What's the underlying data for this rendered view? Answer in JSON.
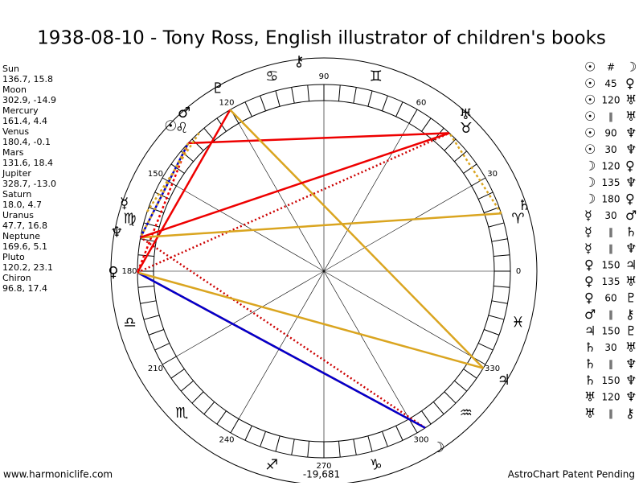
{
  "title": "1938-08-10 - Tony Ross, English illustrator of children's books",
  "planets": [
    {
      "name": "Sun",
      "glyph": "☉",
      "position": "136.7, 15.8"
    },
    {
      "name": "Moon",
      "glyph": "☽",
      "position": "302.9, -14.9"
    },
    {
      "name": "Mercury",
      "glyph": "☿",
      "position": "161.4, 4.4"
    },
    {
      "name": "Venus",
      "glyph": "♀",
      "position": "180.4, -0.1"
    },
    {
      "name": "Mars",
      "glyph": "♂",
      "position": "131.6, 18.4"
    },
    {
      "name": "Jupiter",
      "glyph": "♃",
      "position": "328.7, -13.0"
    },
    {
      "name": "Saturn",
      "glyph": "♄",
      "position": "18.0, 4.7"
    },
    {
      "name": "Uranus",
      "glyph": "♅",
      "position": "47.7, 16.8"
    },
    {
      "name": "Neptune",
      "glyph": "♆",
      "position": "169.6, 5.1"
    },
    {
      "name": "Pluto",
      "glyph": "♇",
      "position": "120.2, 23.1"
    },
    {
      "name": "Chiron",
      "glyph": "⚷",
      "position": "96.8, 17.4"
    }
  ],
  "degree_labels": [
    0,
    30,
    60,
    90,
    120,
    150,
    180,
    210,
    240,
    270,
    300,
    330
  ],
  "signs": [
    "♈",
    "♉",
    "♊",
    "♋",
    "♌",
    "♍",
    "♎",
    "♏",
    "♐",
    "♑",
    "♒",
    "♓"
  ],
  "aspects": [
    {
      "from": "☉",
      "aspect": "#",
      "to": "☽"
    },
    {
      "from": "☉",
      "aspect": "45",
      "to": "♀"
    },
    {
      "from": "☉",
      "aspect": "120",
      "to": "♅"
    },
    {
      "from": "☉",
      "aspect": "∥",
      "to": "♅"
    },
    {
      "from": "☉",
      "aspect": "90",
      "to": "♆"
    },
    {
      "from": "☉",
      "aspect": "30",
      "to": "♆"
    },
    {
      "from": "☽",
      "aspect": "120",
      "to": "♀"
    },
    {
      "from": "☽",
      "aspect": "135",
      "to": "♆"
    },
    {
      "from": "☽",
      "aspect": "180",
      "to": "♀"
    },
    {
      "from": "☿",
      "aspect": "30",
      "to": "♂"
    },
    {
      "from": "☿",
      "aspect": "∥",
      "to": "♄"
    },
    {
      "from": "☿",
      "aspect": "∥",
      "to": "♆"
    },
    {
      "from": "♀",
      "aspect": "150",
      "to": "♃"
    },
    {
      "from": "♀",
      "aspect": "135",
      "to": "♅"
    },
    {
      "from": "♀",
      "aspect": "60",
      "to": "♇"
    },
    {
      "from": "♂",
      "aspect": "∥",
      "to": "⚷"
    },
    {
      "from": "♃",
      "aspect": "150",
      "to": "♇"
    },
    {
      "from": "♄",
      "aspect": "30",
      "to": "♅"
    },
    {
      "from": "♄",
      "aspect": "∥",
      "to": "♆"
    },
    {
      "from": "♄",
      "aspect": "150",
      "to": "♆"
    },
    {
      "from": "♅",
      "aspect": "120",
      "to": "♆"
    },
    {
      "from": "♅",
      "aspect": "∥",
      "to": "⚷"
    }
  ],
  "footer": {
    "left": "www.harmoniclife.com",
    "center": "-19,681",
    "right": "AstroChart Patent Pending"
  }
}
